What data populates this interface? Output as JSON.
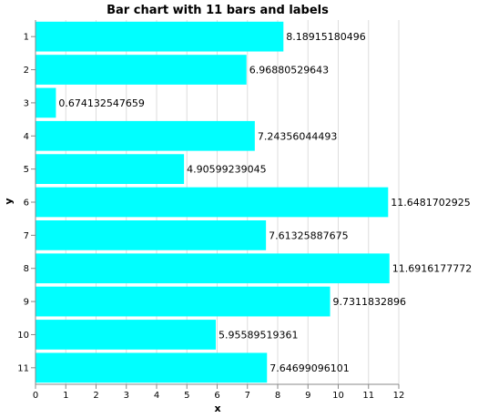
{
  "chart_data": {
    "type": "bar",
    "orientation": "horizontal",
    "title": "Bar chart with 11 bars and labels",
    "xlabel": "x",
    "ylabel": "y",
    "categories": [
      "1",
      "2",
      "3",
      "4",
      "5",
      "6",
      "7",
      "8",
      "9",
      "10",
      "11"
    ],
    "values": [
      8.18915180496,
      6.96880529643,
      0.674132547659,
      7.24356044493,
      4.90599239045,
      11.6481702925,
      7.61325887675,
      11.6916177772,
      9.7311832896,
      5.95589519361,
      7.64699096101
    ],
    "labels": [
      "8.18915180496",
      "6.96880529643",
      "0.674132547659",
      "7.24356044493",
      "4.90599239045",
      "11.6481702925",
      "7.61325887675",
      "11.6916177772",
      "9.7311832896",
      "5.95589519361",
      "7.64699096101"
    ],
    "xlim": [
      0,
      12
    ],
    "xticks": [
      "0",
      "1",
      "2",
      "3",
      "4",
      "5",
      "6",
      "7",
      "8",
      "9",
      "10",
      "11",
      "12"
    ],
    "grid": true,
    "legend": "none",
    "bar_color": "#00ffff"
  }
}
